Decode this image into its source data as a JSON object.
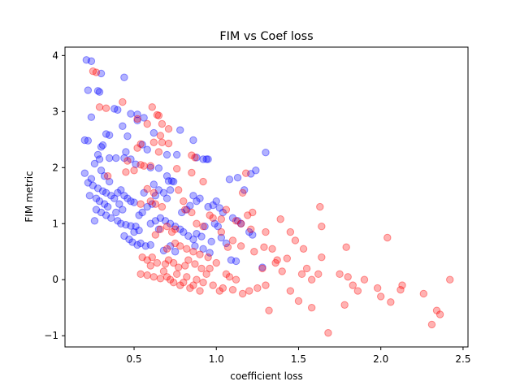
{
  "chart_data": {
    "type": "scatter",
    "title": "FIM vs Coef loss",
    "xlabel": "coefficient loss",
    "ylabel": "FIM metric",
    "xlim": [
      0.08,
      2.53
    ],
    "ylim": [
      -1.2,
      4.15
    ],
    "xticks": [
      0.5,
      1.0,
      1.5,
      2.0,
      2.5
    ],
    "xtick_labels": [
      "0.5",
      "1.0",
      "1.5",
      "2.0",
      "2.5"
    ],
    "yticks": [
      -1,
      0,
      1,
      2,
      3,
      4
    ],
    "ytick_labels": [
      "−1",
      "0",
      "1",
      "2",
      "3",
      "4"
    ],
    "grid": false,
    "marker_alpha": 0.3,
    "series": [
      {
        "name": "blue",
        "color": "#0000ff",
        "points": [
          [
            0.21,
            3.92
          ],
          [
            0.24,
            3.9
          ],
          [
            0.22,
            3.38
          ],
          [
            0.28,
            3.37
          ],
          [
            0.3,
            3.68
          ],
          [
            0.44,
            3.61
          ],
          [
            0.29,
            3.35
          ],
          [
            0.38,
            3.05
          ],
          [
            0.4,
            3.03
          ],
          [
            0.24,
            2.9
          ],
          [
            0.48,
            2.96
          ],
          [
            0.52,
            2.95
          ],
          [
            0.56,
            2.89
          ],
          [
            0.52,
            2.84
          ],
          [
            0.2,
            2.49
          ],
          [
            0.22,
            2.48
          ],
          [
            0.33,
            2.6
          ],
          [
            0.35,
            2.58
          ],
          [
            0.3,
            2.37
          ],
          [
            0.28,
            2.23
          ],
          [
            0.29,
            2.15
          ],
          [
            0.31,
            2.4
          ],
          [
            0.46,
            2.56
          ],
          [
            0.43,
            2.74
          ],
          [
            0.45,
            2.28
          ],
          [
            0.55,
            2.41
          ],
          [
            0.58,
            2.32
          ],
          [
            0.62,
            2.62
          ],
          [
            0.7,
            2.23
          ],
          [
            0.76,
            2.23
          ],
          [
            0.78,
            2.67
          ],
          [
            0.86,
            2.49
          ],
          [
            0.88,
            2.18
          ],
          [
            0.92,
            2.15
          ],
          [
            0.95,
            2.15
          ],
          [
            0.94,
            2.15
          ],
          [
            0.35,
            2.17
          ],
          [
            0.39,
            2.17
          ],
          [
            0.44,
            2.17
          ],
          [
            0.48,
            2.15
          ],
          [
            0.51,
            2.06
          ],
          [
            0.6,
            2.0
          ],
          [
            0.65,
            1.99
          ],
          [
            0.7,
            1.85
          ],
          [
            0.71,
            1.76
          ],
          [
            0.73,
            1.76
          ],
          [
            0.2,
            1.9
          ],
          [
            0.24,
            1.8
          ],
          [
            0.26,
            2.07
          ],
          [
            0.3,
            1.95
          ],
          [
            0.32,
            1.85
          ],
          [
            0.35,
            1.75
          ],
          [
            0.22,
            1.73
          ],
          [
            0.25,
            1.68
          ],
          [
            0.28,
            1.63
          ],
          [
            0.31,
            1.58
          ],
          [
            0.33,
            1.55
          ],
          [
            0.36,
            1.5
          ],
          [
            0.23,
            1.5
          ],
          [
            0.27,
            1.45
          ],
          [
            0.29,
            1.4
          ],
          [
            0.32,
            1.35
          ],
          [
            0.34,
            1.3
          ],
          [
            0.38,
            1.45
          ],
          [
            0.4,
            1.55
          ],
          [
            0.42,
            1.6
          ],
          [
            0.44,
            1.5
          ],
          [
            0.46,
            1.45
          ],
          [
            0.48,
            1.4
          ],
          [
            0.5,
            1.38
          ],
          [
            0.41,
            1.35
          ],
          [
            0.43,
            1.25
          ],
          [
            0.39,
            1.2
          ],
          [
            0.36,
            1.1
          ],
          [
            0.33,
            1.15
          ],
          [
            0.3,
            1.2
          ],
          [
            0.27,
            1.25
          ],
          [
            0.26,
            1.05
          ],
          [
            0.4,
            1.05
          ],
          [
            0.42,
            1.0
          ],
          [
            0.45,
            0.98
          ],
          [
            0.48,
            0.96
          ],
          [
            0.51,
            0.95
          ],
          [
            0.53,
            1.15
          ],
          [
            0.55,
            1.2
          ],
          [
            0.58,
            1.3
          ],
          [
            0.61,
            1.35
          ],
          [
            0.63,
            1.5
          ],
          [
            0.65,
            1.6
          ],
          [
            0.62,
            1.7
          ],
          [
            0.68,
            1.55
          ],
          [
            0.7,
            1.45
          ],
          [
            0.72,
            1.6
          ],
          [
            0.74,
            1.75
          ],
          [
            0.56,
            1.55
          ],
          [
            0.6,
            1.0
          ],
          [
            0.63,
            1.05
          ],
          [
            0.66,
            1.1
          ],
          [
            0.69,
            1.05
          ],
          [
            0.72,
            1.0
          ],
          [
            0.75,
            0.95
          ],
          [
            0.78,
            0.9
          ],
          [
            0.44,
            0.78
          ],
          [
            0.47,
            0.72
          ],
          [
            0.49,
            0.67
          ],
          [
            0.52,
            0.62
          ],
          [
            0.54,
            0.65
          ],
          [
            0.57,
            0.6
          ],
          [
            0.5,
            0.85
          ],
          [
            0.53,
            0.88
          ],
          [
            0.79,
            1.2
          ],
          [
            0.82,
            1.25
          ],
          [
            0.84,
            1.32
          ],
          [
            0.86,
            1.5
          ],
          [
            0.88,
            1.4
          ],
          [
            0.9,
            1.45
          ],
          [
            0.8,
            0.85
          ],
          [
            0.83,
            0.78
          ],
          [
            0.86,
            0.72
          ],
          [
            0.88,
            0.82
          ],
          [
            0.91,
            0.77
          ],
          [
            0.93,
            0.95
          ],
          [
            0.95,
            1.3
          ],
          [
            0.98,
            1.33
          ],
          [
            1.0,
            1.4
          ],
          [
            1.02,
            1.28
          ],
          [
            1.04,
            1.2
          ],
          [
            0.99,
            1.0
          ],
          [
            1.01,
            0.95
          ],
          [
            1.03,
            0.75
          ],
          [
            1.06,
            0.65
          ],
          [
            0.97,
            0.68
          ],
          [
            1.08,
            1.79
          ],
          [
            1.13,
            1.82
          ],
          [
            1.17,
            1.6
          ],
          [
            1.21,
            1.89
          ],
          [
            1.24,
            1.95
          ],
          [
            1.3,
            2.27
          ],
          [
            1.1,
            1.1
          ],
          [
            1.13,
            1.05
          ],
          [
            1.15,
            1.0
          ],
          [
            1.2,
            0.85
          ],
          [
            1.22,
            0.8
          ],
          [
            1.09,
            0.35
          ],
          [
            1.12,
            0.33
          ],
          [
            1.28,
            0.22
          ],
          [
            0.68,
            0.52
          ],
          [
            0.72,
            0.6
          ],
          [
            0.75,
            0.5
          ],
          [
            0.87,
            0.6
          ],
          [
            0.92,
            0.55
          ],
          [
            0.96,
            0.48
          ],
          [
            0.6,
            0.62
          ],
          [
            0.65,
            0.9
          ]
        ]
      },
      {
        "name": "red",
        "color": "#ff0000",
        "points": [
          [
            0.25,
            3.72
          ],
          [
            0.27,
            3.7
          ],
          [
            0.29,
            3.08
          ],
          [
            0.33,
            3.06
          ],
          [
            0.43,
            3.17
          ],
          [
            0.52,
            2.87
          ],
          [
            0.61,
            3.08
          ],
          [
            0.64,
            2.94
          ],
          [
            0.65,
            2.93
          ],
          [
            0.58,
            2.78
          ],
          [
            0.67,
            2.78
          ],
          [
            0.71,
            2.69
          ],
          [
            0.62,
            2.45
          ],
          [
            0.66,
            2.57
          ],
          [
            0.71,
            2.43
          ],
          [
            0.65,
            2.28
          ],
          [
            0.67,
            2.45
          ],
          [
            0.52,
            2.35
          ],
          [
            0.54,
            2.42
          ],
          [
            0.85,
            2.22
          ],
          [
            0.87,
            2.18
          ],
          [
            0.46,
            2.12
          ],
          [
            0.5,
            1.95
          ],
          [
            0.54,
            2.05
          ],
          [
            0.56,
            2.03
          ],
          [
            0.6,
            2.03
          ],
          [
            0.76,
            1.98
          ],
          [
            0.85,
            1.91
          ],
          [
            0.34,
            1.85
          ],
          [
            0.45,
            1.92
          ],
          [
            0.58,
            1.62
          ],
          [
            0.62,
            1.55
          ],
          [
            0.77,
            1.6
          ],
          [
            0.92,
            1.75
          ],
          [
            1.18,
            1.9
          ],
          [
            1.16,
            1.55
          ],
          [
            0.54,
            1.35
          ],
          [
            0.6,
            1.4
          ],
          [
            0.63,
            1.35
          ],
          [
            0.67,
            1.3
          ],
          [
            0.8,
            1.4
          ],
          [
            0.81,
            1.25
          ],
          [
            0.85,
            1.2
          ],
          [
            0.96,
            1.15
          ],
          [
            0.98,
            1.1
          ],
          [
            1.03,
            1.08
          ],
          [
            1.06,
            1.25
          ],
          [
            1.12,
            1.05
          ],
          [
            1.19,
            1.15
          ],
          [
            1.22,
            1.2
          ],
          [
            1.15,
            1.0
          ],
          [
            1.21,
            0.9
          ],
          [
            1.3,
            0.85
          ],
          [
            1.39,
            1.08
          ],
          [
            1.45,
            0.85
          ],
          [
            1.48,
            0.7
          ],
          [
            1.63,
            1.3
          ],
          [
            1.64,
            0.95
          ],
          [
            1.53,
            0.55
          ],
          [
            1.34,
            0.55
          ],
          [
            1.43,
            0.38
          ],
          [
            1.37,
            0.35
          ],
          [
            1.79,
            0.58
          ],
          [
            2.04,
            0.75
          ],
          [
            1.64,
            0.4
          ],
          [
            1.29,
            0.58
          ],
          [
            1.23,
            0.5
          ],
          [
            1.15,
            0.6
          ],
          [
            1.07,
            0.58
          ],
          [
            1.1,
            0.7
          ],
          [
            1.03,
            0.85
          ],
          [
            0.92,
            0.95
          ],
          [
            0.88,
            1.0
          ],
          [
            0.75,
            0.9
          ],
          [
            0.73,
            0.85
          ],
          [
            0.7,
            0.95
          ],
          [
            0.66,
            0.9
          ],
          [
            0.63,
            0.8
          ],
          [
            0.7,
            0.55
          ],
          [
            0.75,
            0.65
          ],
          [
            0.78,
            0.6
          ],
          [
            0.82,
            0.55
          ],
          [
            0.86,
            0.5
          ],
          [
            0.9,
            0.45
          ],
          [
            0.95,
            0.4
          ],
          [
            0.55,
            0.4
          ],
          [
            0.58,
            0.35
          ],
          [
            0.6,
            0.25
          ],
          [
            0.54,
            0.1
          ],
          [
            0.58,
            0.08
          ],
          [
            0.62,
            0.05
          ],
          [
            0.66,
            0.02
          ],
          [
            0.68,
            0.15
          ],
          [
            0.7,
            0.05
          ],
          [
            0.72,
            0.0
          ],
          [
            0.74,
            -0.05
          ],
          [
            0.76,
            0.1
          ],
          [
            0.78,
            -0.1
          ],
          [
            0.8,
            -0.05
          ],
          [
            0.82,
            0.05
          ],
          [
            0.84,
            -0.15
          ],
          [
            0.86,
            -0.1
          ],
          [
            0.88,
            0.0
          ],
          [
            0.9,
            -0.2
          ],
          [
            0.92,
            -0.05
          ],
          [
            0.94,
            0.1
          ],
          [
            0.96,
            0.2
          ],
          [
            0.98,
            -0.1
          ],
          [
            1.0,
            0.3
          ],
          [
            1.02,
            -0.2
          ],
          [
            1.04,
            -0.15
          ],
          [
            1.06,
            0.1
          ],
          [
            1.08,
            0.05
          ],
          [
            1.1,
            -0.18
          ],
          [
            1.12,
            0.0
          ],
          [
            1.16,
            -0.25
          ],
          [
            1.2,
            -0.2
          ],
          [
            1.25,
            -0.15
          ],
          [
            1.28,
            0.2
          ],
          [
            1.3,
            -0.1
          ],
          [
            1.32,
            -0.55
          ],
          [
            1.36,
            0.3
          ],
          [
            1.4,
            0.15
          ],
          [
            1.45,
            -0.2
          ],
          [
            1.5,
            -0.38
          ],
          [
            1.52,
            0.1
          ],
          [
            1.58,
            -0.5
          ],
          [
            1.55,
            0.2
          ],
          [
            1.68,
            -0.95
          ],
          [
            1.75,
            0.1
          ],
          [
            1.78,
            -0.45
          ],
          [
            1.8,
            0.05
          ],
          [
            1.83,
            -0.1
          ],
          [
            1.86,
            -0.2
          ],
          [
            1.9,
            0.0
          ],
          [
            1.98,
            -0.15
          ],
          [
            2.0,
            -0.3
          ],
          [
            2.06,
            -0.4
          ],
          [
            2.12,
            -0.18
          ],
          [
            2.13,
            -0.1
          ],
          [
            2.26,
            -0.25
          ],
          [
            2.31,
            -0.8
          ],
          [
            2.34,
            -0.55
          ],
          [
            2.36,
            -0.62
          ],
          [
            2.42,
            0.0
          ],
          [
            0.69,
            0.28
          ],
          [
            0.71,
            0.35
          ],
          [
            0.74,
            0.3
          ],
          [
            0.77,
            0.22
          ],
          [
            0.81,
            0.25
          ],
          [
            0.83,
            0.35
          ],
          [
            0.87,
            0.28
          ],
          [
            0.91,
            0.2
          ],
          [
            0.64,
            0.3
          ],
          [
            0.61,
            0.4
          ],
          [
            1.62,
            0.1
          ],
          [
            1.58,
            0.0
          ]
        ]
      }
    ]
  }
}
